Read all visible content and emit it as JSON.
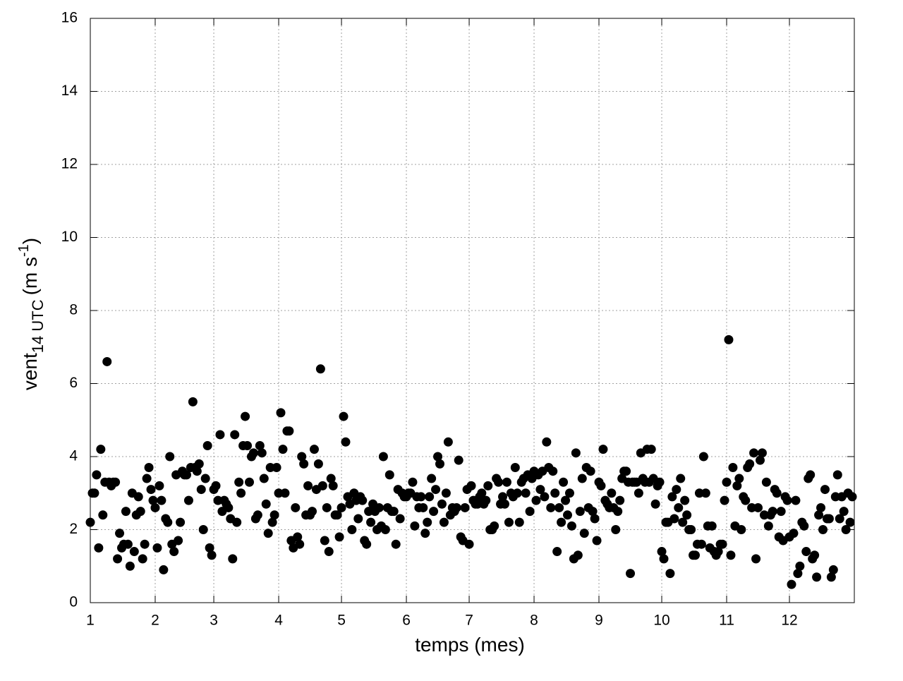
{
  "chart_data": {
    "type": "scatter",
    "xlabel": "temps (mes)",
    "ylabel": {
      "base": "vent",
      "sub": "14 UTC",
      "unit": "(m s",
      "sup": "-1",
      "close": ")"
    },
    "xlim": [
      0,
      365
    ],
    "ylim": [
      0,
      16
    ],
    "xticks": [
      {
        "value": 0,
        "label": "1"
      },
      {
        "value": 31,
        "label": "2"
      },
      {
        "value": 59,
        "label": "3"
      },
      {
        "value": 90,
        "label": "4"
      },
      {
        "value": 120,
        "label": "5"
      },
      {
        "value": 151,
        "label": "6"
      },
      {
        "value": 181,
        "label": "7"
      },
      {
        "value": 212,
        "label": "8"
      },
      {
        "value": 243,
        "label": "9"
      },
      {
        "value": 273,
        "label": "10"
      },
      {
        "value": 304,
        "label": "11"
      },
      {
        "value": 334,
        "label": "12"
      }
    ],
    "yticks": [
      0,
      2,
      4,
      6,
      8,
      10,
      12,
      14,
      16
    ],
    "grid": true,
    "color": "#000000",
    "x": [
      0,
      1,
      2,
      3,
      4,
      5,
      6,
      7,
      8,
      9,
      10,
      11,
      12,
      13,
      14,
      15,
      16,
      17,
      18,
      19,
      20,
      21,
      22,
      23,
      24,
      25,
      26,
      27,
      28,
      29,
      30,
      31,
      32,
      33,
      34,
      35,
      36,
      37,
      38,
      39,
      40,
      41,
      42,
      43,
      44,
      45,
      46,
      47,
      48,
      49,
      50,
      51,
      52,
      53,
      54,
      55,
      56,
      57,
      58,
      59,
      60,
      61,
      62,
      63,
      64,
      65,
      66,
      67,
      68,
      69,
      70,
      71,
      72,
      73,
      74,
      75,
      76,
      77,
      78,
      79,
      80,
      81,
      82,
      83,
      84,
      85,
      86,
      87,
      88,
      89,
      90,
      91,
      92,
      93,
      94,
      95,
      96,
      97,
      98,
      99,
      100,
      101,
      102,
      103,
      104,
      105,
      106,
      107,
      108,
      109,
      110,
      111,
      112,
      113,
      114,
      115,
      116,
      117,
      118,
      119,
      120,
      121,
      122,
      123,
      124,
      125,
      126,
      127,
      128,
      129,
      130,
      131,
      132,
      133,
      134,
      135,
      136,
      137,
      138,
      139,
      140,
      141,
      142,
      143,
      144,
      145,
      146,
      147,
      148,
      149,
      150,
      151,
      152,
      153,
      154,
      155,
      156,
      157,
      158,
      159,
      160,
      161,
      162,
      163,
      164,
      165,
      166,
      167,
      168,
      169,
      170,
      171,
      172,
      173,
      174,
      175,
      176,
      177,
      178,
      179,
      180,
      181,
      182,
      183,
      184,
      185,
      186,
      187,
      188,
      189,
      190,
      191,
      192,
      193,
      194,
      195,
      196,
      197,
      198,
      199,
      200,
      201,
      202,
      203,
      204,
      205,
      206,
      207,
      208,
      209,
      210,
      211,
      212,
      213,
      214,
      215,
      216,
      217,
      218,
      219,
      220,
      221,
      222,
      223,
      224,
      225,
      226,
      227,
      228,
      229,
      230,
      231,
      232,
      233,
      234,
      235,
      236,
      237,
      238,
      239,
      240,
      241,
      242,
      243,
      244,
      245,
      246,
      247,
      248,
      249,
      250,
      251,
      252,
      253,
      254,
      255,
      256,
      257,
      258,
      259,
      260,
      261,
      262,
      263,
      264,
      265,
      266,
      267,
      268,
      269,
      270,
      271,
      272,
      273,
      274,
      275,
      276,
      277,
      278,
      279,
      280,
      281,
      282,
      283,
      284,
      285,
      286,
      287,
      288,
      289,
      290,
      291,
      292,
      293,
      294,
      295,
      296,
      297,
      298,
      299,
      300,
      301,
      302,
      303,
      304,
      305,
      306,
      307,
      308,
      309,
      310,
      311,
      312,
      313,
      314,
      315,
      316,
      317,
      318,
      319,
      320,
      321,
      322,
      323,
      324,
      325,
      326,
      327,
      328,
      329,
      330,
      331,
      332,
      333,
      334,
      335,
      336,
      337,
      338,
      339,
      340,
      341,
      342,
      343,
      344,
      345,
      346,
      347,
      348,
      349,
      350,
      351,
      352,
      353,
      354,
      355,
      356,
      357,
      358,
      359,
      360,
      361,
      362,
      363,
      364
    ],
    "values": [
      2.2,
      3.0,
      3.0,
      3.5,
      1.5,
      4.2,
      2.4,
      3.3,
      6.6,
      3.3,
      3.2,
      3.3,
      3.3,
      1.2,
      1.9,
      1.5,
      1.6,
      2.5,
      1.6,
      1.0,
      3.0,
      1.4,
      2.4,
      2.9,
      2.5,
      1.2,
      1.6,
      3.4,
      3.7,
      3.1,
      2.8,
      2.6,
      1.5,
      3.2,
      2.8,
      0.9,
      2.3,
      2.2,
      4.0,
      1.6,
      1.4,
      3.5,
      1.7,
      2.2,
      3.6,
      3.5,
      3.5,
      2.8,
      3.7,
      5.5,
      3.7,
      3.6,
      3.8,
      3.1,
      2.0,
      3.4,
      4.3,
      1.5,
      1.3,
      3.1,
      3.2,
      2.8,
      4.6,
      2.5,
      2.8,
      2.7,
      2.6,
      2.3,
      1.2,
      4.6,
      2.2,
      3.3,
      3.0,
      4.3,
      5.1,
      4.3,
      3.3,
      4.0,
      4.1,
      2.3,
      2.4,
      4.3,
      4.1,
      3.4,
      2.7,
      1.9,
      3.7,
      2.2,
      2.4,
      3.7,
      3.0,
      5.2,
      4.2,
      3.0,
      4.7,
      4.7,
      1.7,
      1.5,
      2.6,
      1.8,
      1.6,
      4.0,
      3.8,
      2.4,
      3.2,
      2.4,
      2.5,
      4.2,
      3.1,
      3.8,
      6.4,
      3.2,
      1.7,
      2.6,
      1.4,
      3.4,
      3.2,
      2.4,
      2.4,
      1.8,
      2.6,
      5.1,
      4.4,
      2.9,
      2.7,
      2.0,
      3.0,
      2.8,
      2.3,
      2.9,
      2.8,
      1.7,
      1.6,
      2.5,
      2.2,
      2.7,
      2.5,
      2.0,
      2.6,
      2.1,
      4.0,
      2.0,
      2.6,
      3.5,
      2.5,
      2.5,
      1.6,
      3.1,
      2.3,
      3.0,
      2.9,
      2.9,
      3.0,
      3.0,
      3.3,
      2.1,
      2.9,
      2.6,
      2.9,
      2.6,
      1.9,
      2.2,
      2.9,
      3.4,
      2.5,
      3.1,
      4.0,
      3.8,
      2.7,
      2.2,
      3.0,
      4.4,
      2.4,
      2.6,
      2.5,
      2.6,
      3.9,
      1.8,
      1.7,
      2.6,
      3.1,
      1.6,
      3.2,
      2.8,
      2.7,
      2.7,
      2.9,
      3.0,
      2.7,
      2.8,
      3.2,
      2.0,
      2.0,
      2.1,
      3.4,
      3.3,
      2.7,
      2.9,
      2.7,
      3.3,
      2.2,
      3.0,
      2.9,
      3.7,
      3.0,
      2.2,
      3.3,
      3.4,
      3.0,
      3.5,
      2.5,
      3.4,
      3.6,
      2.8,
      3.5,
      3.1,
      3.6,
      2.9,
      4.4,
      3.7,
      2.6,
      3.6,
      3.0,
      1.4,
      2.6,
      2.2,
      3.3,
      2.8,
      2.4,
      3.0,
      2.1,
      1.2,
      4.1,
      1.3,
      2.5,
      3.4,
      1.9,
      3.7,
      2.6,
      3.6,
      2.5,
      2.3,
      1.7,
      3.3,
      3.2,
      4.2,
      2.8,
      2.7,
      2.6,
      3.0,
      2.6,
      2.0,
      2.5,
      2.8,
      3.4,
      3.6,
      3.6,
      3.3,
      0.8,
      3.3,
      3.3,
      3.3,
      3.0,
      4.1,
      3.4,
      3.3,
      4.2,
      3.3,
      4.2,
      3.4,
      2.7,
      3.2,
      3.3,
      1.4,
      1.2,
      2.2,
      2.2,
      0.8,
      2.9,
      2.3,
      3.1,
      2.6,
      3.4,
      2.2,
      2.8,
      2.4,
      2.0,
      2.0,
      1.3,
      1.3,
      1.6,
      3.0,
      1.6,
      4.0,
      3.0,
      2.1,
      1.5,
      2.1,
      1.4,
      1.3,
      1.4,
      1.6,
      1.6,
      2.8,
      3.3,
      7.2,
      1.3,
      3.7,
      2.1,
      3.2,
      3.4,
      2.0,
      2.9,
      2.8,
      3.7,
      3.8,
      2.6,
      4.1,
      1.2,
      2.6,
      3.9,
      4.1,
      2.4,
      3.3,
      2.1,
      2.4,
      2.5,
      3.1,
      3.0,
      1.8,
      2.5,
      1.7,
      2.9,
      2.8,
      1.8,
      0.5,
      1.9,
      2.8,
      0.8,
      1.0,
      2.2,
      2.1,
      1.4,
      3.4,
      3.5,
      1.2,
      1.3,
      0.7,
      2.4,
      2.6,
      2.0,
      3.1,
      2.3,
      2.3,
      0.7,
      0.9,
      2.9,
      3.5,
      2.3,
      2.9,
      2.5,
      2.0,
      3.0,
      2.2,
      2.9
    ]
  }
}
